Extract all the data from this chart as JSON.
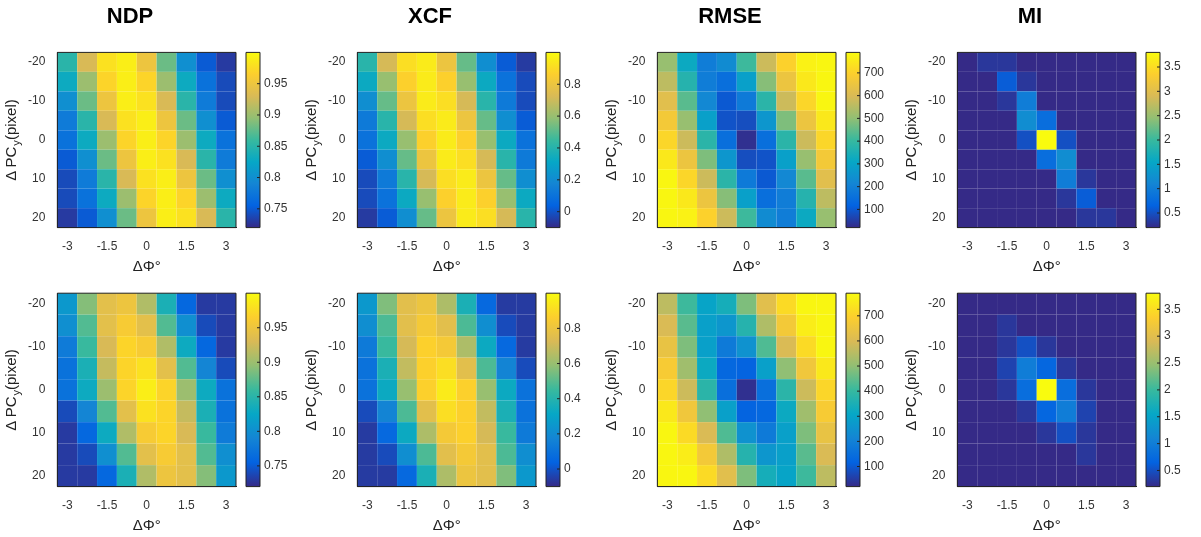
{
  "chart_data": [
    {
      "type": "heatmap",
      "title": "NDP",
      "xlabel": "ΔΦ°",
      "ylabel": "Δ PC$_{y}$(pixel)",
      "categories": [
        "-3",
        null,
        "-1.5",
        null,
        "0",
        null,
        "1.5",
        null,
        "3"
      ],
      "y_categories": [
        "-20",
        null,
        "-10",
        null,
        "0",
        null,
        "10",
        null,
        "20"
      ],
      "clim": [
        0.72,
        1
      ],
      "cticks": [
        0.75,
        0.8,
        0.85,
        0.9,
        0.95
      ],
      "cells": [
        [
          0.85,
          0.93,
          0.98,
          0.99,
          0.95,
          0.88,
          0.8,
          0.75,
          0.73
        ],
        [
          0.83,
          0.9,
          0.97,
          0.99,
          0.97,
          0.9,
          0.83,
          0.77,
          0.74
        ],
        [
          0.8,
          0.88,
          0.95,
          0.99,
          0.98,
          0.93,
          0.85,
          0.78,
          0.74
        ],
        [
          0.78,
          0.85,
          0.93,
          0.98,
          0.99,
          0.95,
          0.88,
          0.8,
          0.75
        ],
        [
          0.77,
          0.83,
          0.9,
          0.97,
          0.99,
          0.97,
          0.9,
          0.83,
          0.77
        ],
        [
          0.75,
          0.8,
          0.88,
          0.95,
          0.99,
          0.98,
          0.93,
          0.85,
          0.78
        ],
        [
          0.74,
          0.78,
          0.85,
          0.93,
          0.98,
          0.99,
          0.95,
          0.88,
          0.8
        ],
        [
          0.74,
          0.77,
          0.83,
          0.9,
          0.97,
          0.99,
          0.97,
          0.9,
          0.83
        ],
        [
          0.73,
          0.75,
          0.8,
          0.88,
          0.95,
          0.99,
          0.98,
          0.93,
          0.85
        ]
      ]
    },
    {
      "type": "heatmap",
      "title": "XCF",
      "xlabel": "ΔΦ°",
      "ylabel": "Δ PC$_{y}$(pixel)",
      "categories": [
        "-3",
        null,
        "-1.5",
        null,
        "0",
        null,
        "1.5",
        null,
        "3"
      ],
      "y_categories": [
        "-20",
        null,
        "-10",
        null,
        "0",
        null,
        "10",
        null,
        "20"
      ],
      "clim": [
        -0.1,
        1
      ],
      "cticks": [
        0,
        0.2,
        0.4,
        0.6,
        0.8
      ],
      "cells": [
        [
          0.41,
          0.72,
          0.91,
          0.95,
          0.8,
          0.52,
          0.21,
          0.02,
          -0.06
        ],
        [
          0.33,
          0.6,
          0.87,
          0.95,
          0.87,
          0.6,
          0.33,
          0.1,
          -0.02
        ],
        [
          0.21,
          0.52,
          0.8,
          0.95,
          0.91,
          0.72,
          0.41,
          0.13,
          -0.02
        ],
        [
          0.13,
          0.41,
          0.72,
          0.91,
          0.95,
          0.8,
          0.52,
          0.21,
          0.02
        ],
        [
          0.1,
          0.33,
          0.6,
          0.87,
          0.95,
          0.87,
          0.6,
          0.33,
          0.1
        ],
        [
          0.02,
          0.21,
          0.52,
          0.8,
          0.95,
          0.91,
          0.72,
          0.41,
          0.13
        ],
        [
          -0.02,
          0.13,
          0.41,
          0.72,
          0.91,
          0.95,
          0.8,
          0.52,
          0.21
        ],
        [
          -0.02,
          0.1,
          0.33,
          0.6,
          0.87,
          0.95,
          0.87,
          0.6,
          0.33
        ],
        [
          -0.06,
          0.02,
          0.21,
          0.52,
          0.8,
          0.95,
          0.91,
          0.72,
          0.41
        ]
      ]
    },
    {
      "type": "heatmap",
      "title": "RMSE",
      "xlabel": "ΔΦ°",
      "ylabel": "Δ PC$_{y}$(pixel)",
      "categories": [
        "-3",
        null,
        "-1.5",
        null,
        "0",
        null,
        "1.5",
        null,
        "3"
      ],
      "y_categories": [
        "-20",
        null,
        "-10",
        null,
        "0",
        null,
        "10",
        null,
        "20"
      ],
      "clim": [
        20,
        790
      ],
      "cticks": [
        100,
        200,
        300,
        400,
        500,
        600,
        700
      ],
      "cells": [
        [
          510,
          320,
          190,
          230,
          410,
          580,
          700,
          770,
          780
        ],
        [
          560,
          370,
          190,
          150,
          290,
          490,
          650,
          750,
          780
        ],
        [
          620,
          440,
          220,
          100,
          180,
          380,
          580,
          710,
          780
        ],
        [
          670,
          510,
          290,
          90,
          80,
          260,
          480,
          650,
          750
        ],
        [
          710,
          580,
          380,
          150,
          30,
          150,
          380,
          580,
          710
        ],
        [
          750,
          650,
          480,
          260,
          80,
          90,
          290,
          510,
          670
        ],
        [
          780,
          710,
          580,
          380,
          180,
          100,
          220,
          440,
          620
        ],
        [
          780,
          750,
          650,
          490,
          290,
          150,
          190,
          370,
          560
        ],
        [
          780,
          770,
          700,
          580,
          410,
          230,
          190,
          320,
          510
        ]
      ]
    },
    {
      "type": "heatmap",
      "title": "MI",
      "xlabel": "ΔΦ°",
      "ylabel": "Δ PC$_{y}$(pixel)",
      "categories": [
        "-3",
        null,
        "-1.5",
        null,
        "0",
        null,
        "1.5",
        null,
        "3"
      ],
      "y_categories": [
        "-20",
        null,
        "-10",
        null,
        "0",
        null,
        "10",
        null,
        "20"
      ],
      "clim": [
        0.2,
        3.8
      ],
      "cticks": [
        0.5,
        1,
        1.5,
        2,
        2.5,
        3,
        3.5
      ],
      "cells": [
        [
          0.2,
          0.3,
          0.3,
          0.2,
          0.2,
          0.2,
          0.2,
          0.2,
          0.2
        ],
        [
          0.2,
          0.2,
          0.6,
          0.3,
          0.2,
          0.2,
          0.2,
          0.2,
          0.2
        ],
        [
          0.2,
          0.2,
          0.3,
          1.0,
          0.2,
          0.2,
          0.2,
          0.2,
          0.2
        ],
        [
          0.2,
          0.2,
          0.2,
          1.2,
          0.8,
          0.2,
          0.2,
          0.2,
          0.2
        ],
        [
          0.2,
          0.2,
          0.2,
          0.5,
          3.8,
          0.5,
          0.2,
          0.2,
          0.2
        ],
        [
          0.2,
          0.2,
          0.2,
          0.2,
          0.8,
          1.2,
          0.2,
          0.2,
          0.2
        ],
        [
          0.2,
          0.2,
          0.2,
          0.2,
          0.2,
          1.0,
          0.3,
          0.2,
          0.2
        ],
        [
          0.2,
          0.2,
          0.2,
          0.2,
          0.2,
          0.3,
          0.6,
          0.2,
          0.2
        ],
        [
          0.2,
          0.2,
          0.2,
          0.2,
          0.2,
          0.2,
          0.3,
          0.3,
          0.2
        ]
      ]
    },
    {
      "type": "heatmap",
      "xlabel": "ΔΦ°",
      "ylabel": "Δ PC$_{y}$(pixel)",
      "categories": [
        "-3",
        null,
        "-1.5",
        null,
        "0",
        null,
        "1.5",
        null,
        "3"
      ],
      "y_categories": [
        "-20",
        null,
        "-10",
        null,
        "0",
        null,
        "10",
        null,
        "20"
      ],
      "clim": [
        0.72,
        1
      ],
      "cticks": [
        0.75,
        0.8,
        0.85,
        0.9,
        0.95
      ],
      "cells": [
        [
          0.81,
          0.89,
          0.94,
          0.95,
          0.91,
          0.84,
          0.76,
          0.73,
          0.73
        ],
        [
          0.8,
          0.87,
          0.94,
          0.96,
          0.94,
          0.87,
          0.8,
          0.74,
          0.73
        ],
        [
          0.78,
          0.86,
          0.93,
          0.97,
          0.96,
          0.91,
          0.83,
          0.76,
          0.73
        ],
        [
          0.77,
          0.84,
          0.92,
          0.97,
          0.98,
          0.94,
          0.87,
          0.79,
          0.74
        ],
        [
          0.77,
          0.83,
          0.9,
          0.97,
          0.99,
          0.97,
          0.9,
          0.83,
          0.77
        ],
        [
          0.74,
          0.79,
          0.87,
          0.94,
          0.98,
          0.97,
          0.92,
          0.84,
          0.77
        ],
        [
          0.73,
          0.76,
          0.83,
          0.91,
          0.96,
          0.97,
          0.93,
          0.86,
          0.78
        ],
        [
          0.73,
          0.74,
          0.8,
          0.87,
          0.94,
          0.96,
          0.94,
          0.87,
          0.8
        ],
        [
          0.73,
          0.73,
          0.76,
          0.84,
          0.91,
          0.95,
          0.94,
          0.89,
          0.81
        ]
      ]
    },
    {
      "type": "heatmap",
      "xlabel": "ΔΦ°",
      "ylabel": "Δ PC$_{y}$(pixel)",
      "categories": [
        "-3",
        null,
        "-1.5",
        null,
        "0",
        null,
        "1.5",
        null,
        "3"
      ],
      "y_categories": [
        "-20",
        null,
        "-10",
        null,
        "0",
        null,
        "10",
        null,
        "20"
      ],
      "clim": [
        -0.1,
        1
      ],
      "cticks": [
        0,
        0.2,
        0.4,
        0.6,
        0.8
      ],
      "cells": [
        [
          0.25,
          0.56,
          0.76,
          0.8,
          0.64,
          0.37,
          0.06,
          -0.06,
          -0.06
        ],
        [
          0.21,
          0.48,
          0.76,
          0.83,
          0.76,
          0.48,
          0.21,
          -0.02,
          -0.06
        ],
        [
          0.13,
          0.45,
          0.72,
          0.87,
          0.83,
          0.64,
          0.33,
          0.06,
          -0.06
        ],
        [
          0.1,
          0.37,
          0.68,
          0.87,
          0.91,
          0.76,
          0.48,
          0.17,
          -0.02
        ],
        [
          0.1,
          0.33,
          0.6,
          0.87,
          0.95,
          0.87,
          0.6,
          0.33,
          0.1
        ],
        [
          -0.02,
          0.17,
          0.48,
          0.76,
          0.91,
          0.87,
          0.68,
          0.37,
          0.1
        ],
        [
          -0.06,
          0.06,
          0.33,
          0.64,
          0.83,
          0.87,
          0.72,
          0.45,
          0.13
        ],
        [
          -0.06,
          -0.02,
          0.21,
          0.48,
          0.76,
          0.83,
          0.76,
          0.48,
          0.21
        ],
        [
          -0.06,
          -0.06,
          0.06,
          0.37,
          0.64,
          0.8,
          0.76,
          0.56,
          0.25
        ]
      ]
    },
    {
      "type": "heatmap",
      "xlabel": "ΔΦ°",
      "ylabel": "Δ PC$_{y}$(pixel)",
      "categories": [
        "-3",
        null,
        "-1.5",
        null,
        "0",
        null,
        "1.5",
        null,
        "3"
      ],
      "y_categories": [
        "-20",
        null,
        "-10",
        null,
        "0",
        null,
        "10",
        null,
        "20"
      ],
      "clim": [
        20,
        790
      ],
      "cticks": [
        100,
        200,
        300,
        400,
        500,
        600,
        700
      ],
      "cells": [
        [
          560,
          410,
          300,
          340,
          480,
          620,
          720,
          780,
          780
        ],
        [
          600,
          440,
          290,
          260,
          370,
          540,
          670,
          760,
          780
        ],
        [
          640,
          480,
          290,
          180,
          250,
          430,
          600,
          720,
          780
        ],
        [
          680,
          520,
          320,
          130,
          120,
          290,
          500,
          660,
          750
        ],
        [
          710,
          580,
          380,
          150,
          30,
          150,
          380,
          580,
          710
        ],
        [
          750,
          660,
          500,
          290,
          120,
          130,
          320,
          520,
          680
        ],
        [
          780,
          720,
          600,
          430,
          250,
          180,
          290,
          480,
          640
        ],
        [
          780,
          760,
          670,
          540,
          370,
          260,
          290,
          440,
          600
        ],
        [
          780,
          780,
          720,
          620,
          480,
          340,
          300,
          410,
          560
        ]
      ]
    },
    {
      "type": "heatmap",
      "xlabel": "ΔΦ°",
      "ylabel": "Δ PC$_{y}$(pixel)",
      "categories": [
        "-3",
        null,
        "-1.5",
        null,
        "0",
        null,
        "1.5",
        null,
        "3"
      ],
      "y_categories": [
        "-20",
        null,
        "-10",
        null,
        "0",
        null,
        "10",
        null,
        "20"
      ],
      "clim": [
        0.2,
        3.8
      ],
      "cticks": [
        0.5,
        1,
        1.5,
        2,
        2.5,
        3,
        3.5
      ],
      "cells": [
        [
          0.2,
          0.2,
          0.2,
          0.2,
          0.2,
          0.2,
          0.2,
          0.2,
          0.2
        ],
        [
          0.2,
          0.2,
          0.3,
          0.2,
          0.2,
          0.2,
          0.2,
          0.2,
          0.2
        ],
        [
          0.2,
          0.2,
          0.3,
          0.5,
          0.3,
          0.2,
          0.2,
          0.2,
          0.2
        ],
        [
          0.2,
          0.2,
          0.4,
          1.0,
          0.7,
          0.3,
          0.2,
          0.2,
          0.2
        ],
        [
          0.2,
          0.2,
          0.3,
          0.8,
          3.8,
          0.8,
          0.3,
          0.2,
          0.2
        ],
        [
          0.2,
          0.2,
          0.2,
          0.3,
          0.7,
          1.0,
          0.4,
          0.2,
          0.2
        ],
        [
          0.2,
          0.2,
          0.2,
          0.2,
          0.3,
          0.5,
          0.3,
          0.2,
          0.2
        ],
        [
          0.2,
          0.2,
          0.2,
          0.2,
          0.2,
          0.2,
          0.3,
          0.2,
          0.2
        ],
        [
          0.2,
          0.2,
          0.2,
          0.2,
          0.2,
          0.2,
          0.2,
          0.2,
          0.2
        ]
      ]
    }
  ]
}
